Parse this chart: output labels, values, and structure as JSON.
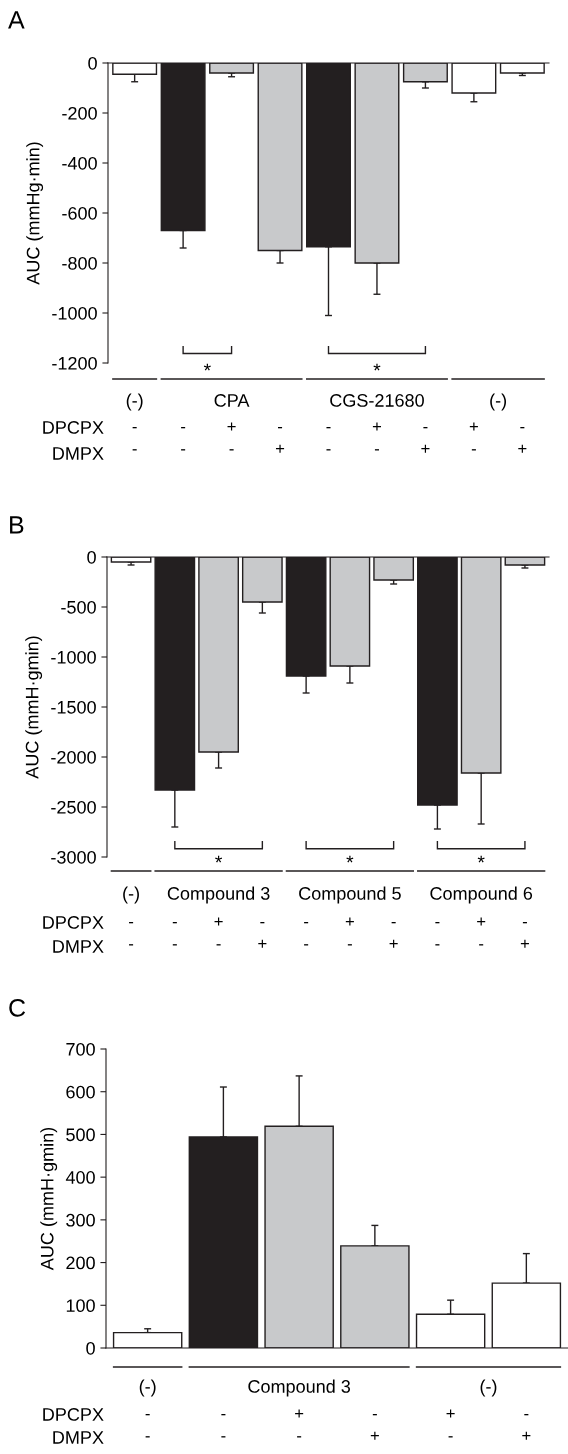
{
  "chart_data": [
    {
      "type": "bar",
      "title": "A",
      "ylabel": "AUC (mmHg·min)",
      "categories": [
        "-\n-",
        "-\n-",
        "+\n-",
        "-\n+",
        "-\n-",
        "+\n-",
        "-\n+",
        "+\n-",
        "-\n+"
      ],
      "values": [
        -45,
        -670,
        -40,
        -750,
        -735,
        -800,
        -75,
        -120,
        -40
      ],
      "errors": [
        [
          -75,
          -45
        ],
        [
          -740,
          -670
        ],
        [
          -55,
          -40
        ],
        [
          -800,
          -750
        ],
        [
          -1010,
          -735
        ],
        [
          -925,
          -800
        ],
        [
          -100,
          -75
        ],
        [
          -155,
          -120
        ],
        [
          -50,
          -40
        ]
      ],
      "colors": [
        "#ffffff",
        "#231f20",
        "#c8c9cb",
        "#c8c9cb",
        "#231f20",
        "#c8c9cb",
        "#c8c9cb",
        "#ffffff",
        "#ffffff"
      ],
      "ylim": [
        -1200,
        0
      ],
      "yticks": [
        0,
        -200,
        -400,
        -600,
        -800,
        -1000,
        -1200
      ],
      "annotations": [
        "(-)",
        "CPA",
        "CGS-21680",
        "(-)",
        "DPCPX",
        "DMPX",
        "*",
        "*"
      ]
    },
    {
      "type": "bar",
      "title": "B",
      "ylabel": "AUC (mmH·gmin)",
      "categories": [
        "-\n-",
        "-\n-",
        "+\n-",
        "-\n+",
        "-\n-",
        "+\n-",
        "-\n+",
        "-\n-",
        "+\n-",
        "-\n+"
      ],
      "values": [
        -50,
        -2330,
        -1950,
        -450,
        -1190,
        -1090,
        -230,
        -2480,
        -2160,
        -80
      ],
      "errors": [
        [
          -80,
          -50
        ],
        [
          -2700,
          -2330
        ],
        [
          -2110,
          -1950
        ],
        [
          -560,
          -450
        ],
        [
          -1360,
          -1190
        ],
        [
          -1260,
          -1090
        ],
        [
          -270,
          -230
        ],
        [
          -2720,
          -2480
        ],
        [
          -2670,
          -2160
        ],
        [
          -110,
          -80
        ]
      ],
      "colors": [
        "#ffffff",
        "#231f20",
        "#c8c9cb",
        "#c8c9cb",
        "#231f20",
        "#c8c9cb",
        "#c8c9cb",
        "#231f20",
        "#c8c9cb",
        "#c8c9cb"
      ],
      "ylim": [
        -3000,
        0
      ],
      "yticks": [
        0,
        -500,
        -1000,
        -1500,
        -2000,
        -2500,
        -3000
      ],
      "annotations": [
        "(-)",
        "Compound 3",
        "Compound 5",
        "Compound 6",
        "DPCPX",
        "DMPX",
        "*",
        "*",
        "*"
      ]
    },
    {
      "type": "bar",
      "title": "C",
      "ylabel": "AUC (mmH·gmin)",
      "categories": [
        "-\n-",
        "-\n-",
        "+\n-",
        "-\n+",
        "+\n-",
        "-\n+"
      ],
      "values": [
        36,
        494,
        519,
        239,
        79,
        152
      ],
      "errors": [
        [
          36,
          45
        ],
        [
          494,
          611
        ],
        [
          519,
          637
        ],
        [
          239,
          287
        ],
        [
          79,
          112
        ],
        [
          152,
          221
        ]
      ],
      "colors": [
        "#ffffff",
        "#231f20",
        "#c8c9cb",
        "#c8c9cb",
        "#ffffff",
        "#ffffff"
      ],
      "ylim": [
        0,
        700
      ],
      "yticks": [
        0,
        100,
        200,
        300,
        400,
        500,
        600,
        700
      ],
      "annotations": [
        "(-)",
        "Compound 3",
        "(-)",
        "DPCPX",
        "DMPX"
      ]
    }
  ]
}
